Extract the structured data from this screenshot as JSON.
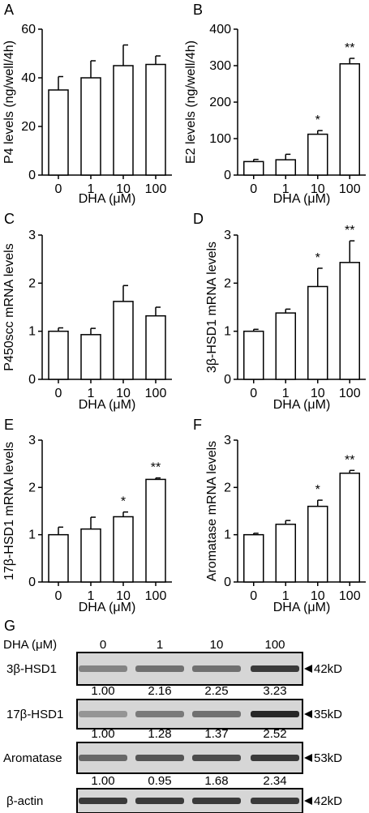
{
  "chart_data": [
    {
      "panel": "A",
      "type": "bar",
      "categories": [
        "0",
        "1",
        "10",
        "100"
      ],
      "values": [
        35,
        40,
        45,
        45.5
      ],
      "errors": [
        5.5,
        7,
        8.5,
        3.5
      ],
      "significance": [
        "",
        "",
        "",
        ""
      ],
      "ylabel": "P4 levels (ng/well/4h)",
      "xlabel": "DHA (μM)",
      "ylim": [
        0,
        60
      ],
      "yticks": [
        "0",
        "20",
        "40",
        "60"
      ]
    },
    {
      "panel": "B",
      "type": "bar",
      "categories": [
        "0",
        "1",
        "10",
        "100"
      ],
      "values": [
        37,
        42,
        112,
        305
      ],
      "errors": [
        6,
        15,
        10,
        15
      ],
      "significance": [
        "",
        "",
        "*",
        "**"
      ],
      "ylabel": "E2 levels (ng/well/4h)",
      "xlabel": "DHA (μM)",
      "ylim": [
        0,
        400
      ],
      "yticks": [
        "0",
        "100",
        "200",
        "300",
        "400"
      ]
    },
    {
      "panel": "C",
      "type": "bar",
      "categories": [
        "0",
        "1",
        "10",
        "100"
      ],
      "values": [
        1.0,
        0.93,
        1.62,
        1.32
      ],
      "errors": [
        0.07,
        0.13,
        0.33,
        0.18
      ],
      "significance": [
        "",
        "",
        "",
        ""
      ],
      "ylabel": "P450scc mRNA levels",
      "xlabel": "DHA (μM)",
      "ylim": [
        0,
        3
      ],
      "yticks": [
        "0",
        "1",
        "2",
        "3"
      ]
    },
    {
      "panel": "D",
      "type": "bar",
      "categories": [
        "0",
        "1",
        "10",
        "100"
      ],
      "values": [
        1.0,
        1.38,
        1.93,
        2.43
      ],
      "errors": [
        0.04,
        0.08,
        0.38,
        0.45
      ],
      "significance": [
        "",
        "",
        "*",
        "**"
      ],
      "ylabel": "3β-HSD1 mRNA levels",
      "xlabel": "DHA (μM)",
      "ylim": [
        0,
        3
      ],
      "yticks": [
        "0",
        "1",
        "2",
        "3"
      ]
    },
    {
      "panel": "E",
      "type": "bar",
      "categories": [
        "0",
        "1",
        "10",
        "100"
      ],
      "values": [
        1.0,
        1.12,
        1.38,
        2.17
      ],
      "errors": [
        0.16,
        0.25,
        0.1,
        0.03
      ],
      "significance": [
        "",
        "",
        "*",
        "**"
      ],
      "ylabel": "17β-HSD1 mRNA levels",
      "xlabel": "DHA (μM)",
      "ylim": [
        0,
        3
      ],
      "yticks": [
        "0",
        "1",
        "2",
        "3"
      ]
    },
    {
      "panel": "F",
      "type": "bar",
      "categories": [
        "0",
        "1",
        "10",
        "100"
      ],
      "values": [
        1.0,
        1.22,
        1.6,
        2.3
      ],
      "errors": [
        0.03,
        0.08,
        0.13,
        0.06
      ],
      "significance": [
        "",
        "",
        "*",
        "**"
      ],
      "ylabel": "Aromatase mRNA levels",
      "xlabel": "DHA (μM)",
      "ylim": [
        0,
        3
      ],
      "yticks": [
        "0",
        "1",
        "2",
        "3"
      ]
    }
  ],
  "blot": {
    "panel": "G",
    "header_label": "DHA (μM)",
    "doses": [
      "0",
      "1",
      "10",
      "100"
    ],
    "rows": [
      {
        "protein": "3β-HSD1",
        "mw": "42kD",
        "intensities": [
          0.45,
          0.55,
          0.55,
          0.85
        ]
      },
      {
        "protein": "17β-HSD1",
        "mw": "35kD",
        "intensities": [
          0.35,
          0.5,
          0.55,
          0.95
        ]
      },
      {
        "protein": "Aromatase",
        "mw": "53kD",
        "intensities": [
          0.6,
          0.7,
          0.75,
          0.85
        ]
      },
      {
        "protein": "β-actin",
        "mw": "42kD",
        "intensities": [
          0.85,
          0.85,
          0.85,
          0.85
        ]
      }
    ],
    "ratios": [
      [
        "1.00",
        "2.16",
        "2.25",
        "3.23"
      ],
      [
        "1.00",
        "1.28",
        "1.37",
        "2.52"
      ],
      [
        "1.00",
        "0.95",
        "1.68",
        "2.34"
      ]
    ]
  },
  "colors": {
    "bar_fill": "#ffffff",
    "stroke": "#000000",
    "band": "#1e1e1e",
    "blot_bg": "#d6d6d6"
  }
}
